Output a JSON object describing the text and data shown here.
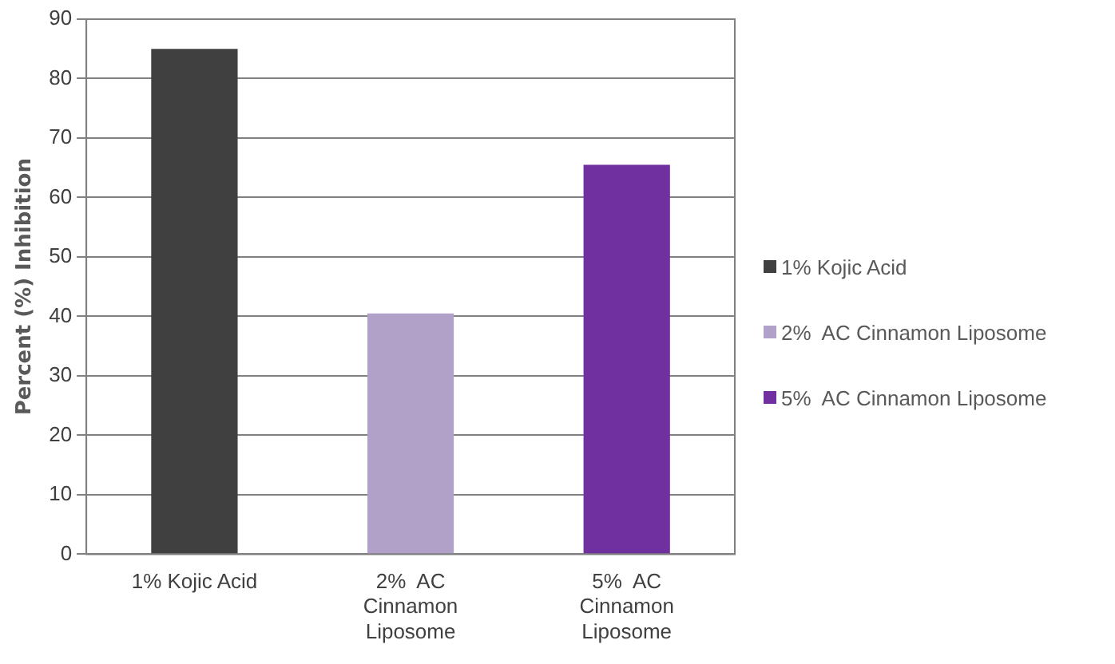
{
  "chart_data": {
    "type": "bar",
    "ylabel": "Percent (%) Inhibition",
    "categories": [
      "1% Kojic Acid",
      "2%  AC Cinnamon Liposome",
      "5%  AC Cinnamon Liposome"
    ],
    "series": [
      {
        "name": "1% Kojic Acid",
        "color": "#404040",
        "values": [
          85,
          null,
          null
        ]
      },
      {
        "name": "2%  AC Cinnamon Liposome",
        "color": "#b1a0c7",
        "values": [
          null,
          40.5,
          null
        ]
      },
      {
        "name": "5%  AC Cinnamon Liposome",
        "color": "#7030a0",
        "values": [
          null,
          null,
          65.5
        ]
      }
    ],
    "ylim": [
      0,
      90
    ],
    "yticks": [
      0,
      10,
      20,
      30,
      40,
      50,
      60,
      70,
      80,
      90
    ],
    "grid": "y",
    "legend": "right"
  }
}
